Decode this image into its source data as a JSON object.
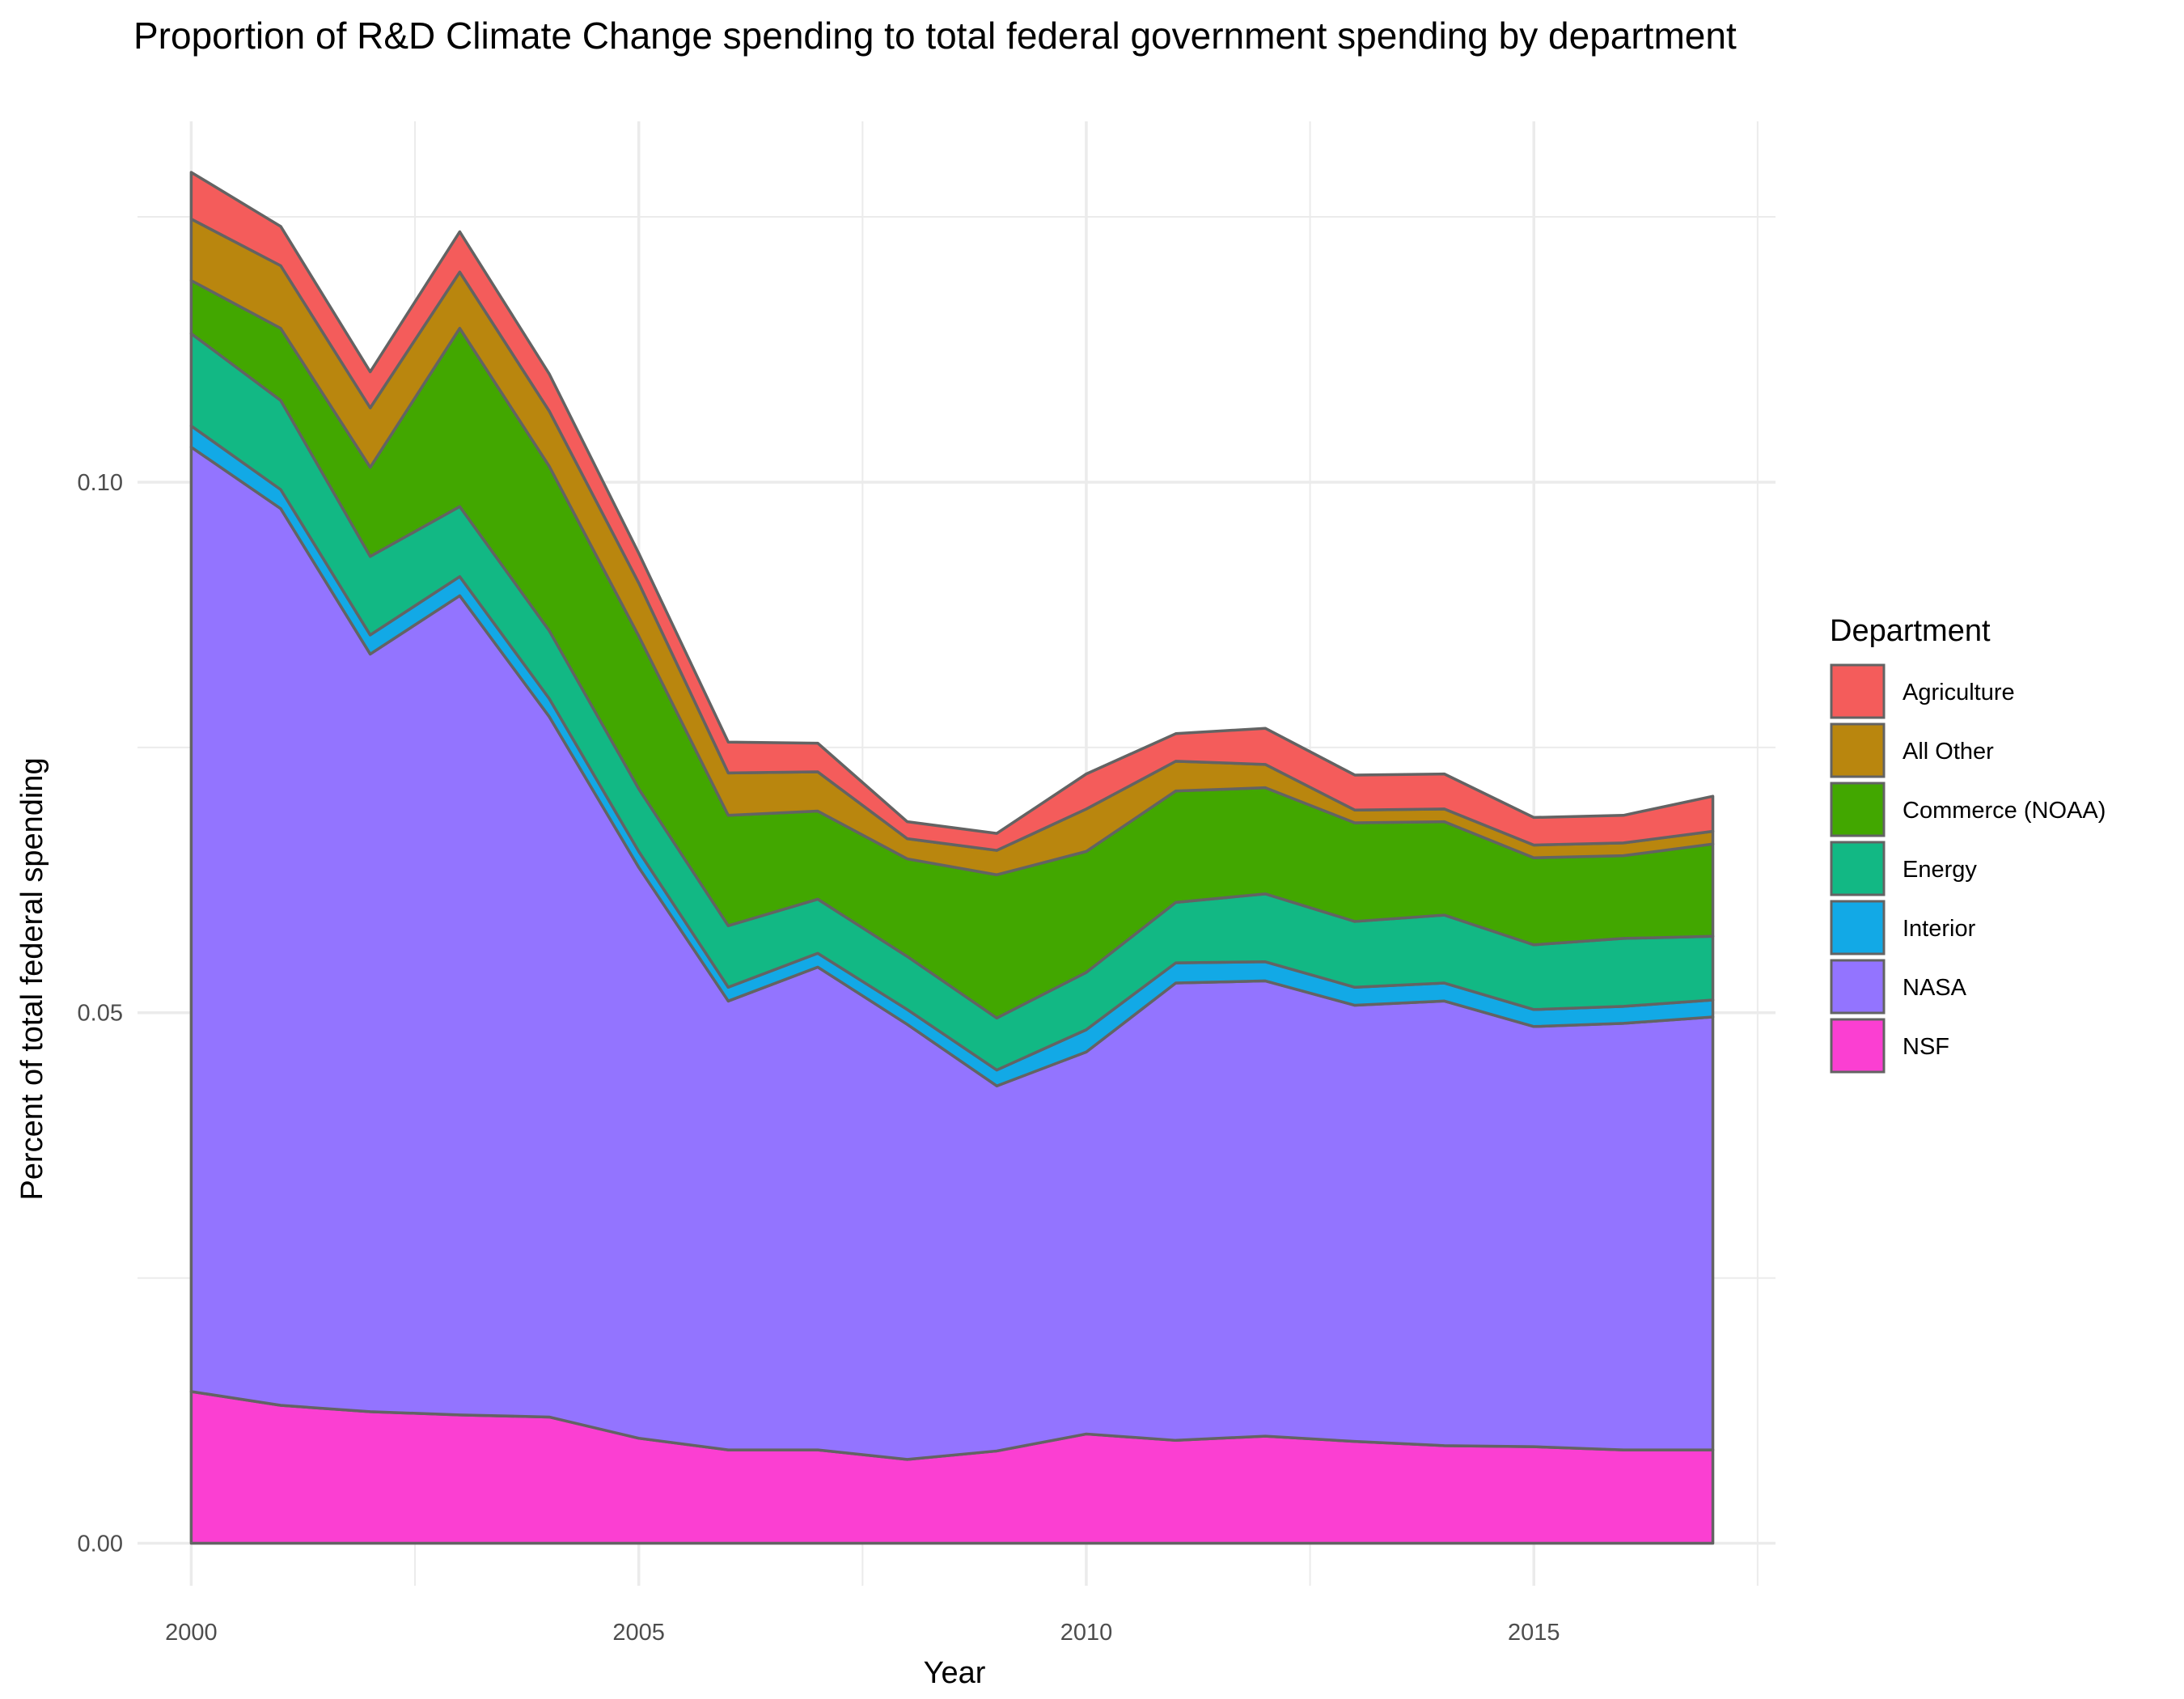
{
  "chart_data": {
    "type": "area",
    "stacked": true,
    "title": "Proportion of R&D Climate Change spending to total federal government spending by department",
    "xlabel": "Year",
    "ylabel": "Percent of total federal spending",
    "xlim": [
      1999.4,
      2017.7
    ],
    "ylim": [
      -0.004,
      0.134
    ],
    "x_ticks": [
      2000,
      2005,
      2010,
      2015
    ],
    "x_tick_labels": [
      "2000",
      "2005",
      "2010",
      "2015"
    ],
    "y_ticks": [
      0.0,
      0.05,
      0.1
    ],
    "y_tick_labels": [
      "0.00",
      "0.05",
      "0.10"
    ],
    "grid": true,
    "legend": {
      "title": "Department",
      "position": "right"
    },
    "x": [
      2000,
      2001,
      2002,
      2003,
      2004,
      2005,
      2006,
      2007,
      2008,
      2009,
      2010,
      2011,
      2012,
      2013,
      2014,
      2015,
      2016,
      2017
    ],
    "series": [
      {
        "name": "NSF",
        "color": "#FB3FD2",
        "values": [
          0.0143,
          0.013,
          0.0124,
          0.0121,
          0.0119,
          0.0099,
          0.0088,
          0.0088,
          0.0079,
          0.0087,
          0.0103,
          0.0097,
          0.0101,
          0.0096,
          0.0092,
          0.0091,
          0.0088,
          0.0088
        ]
      },
      {
        "name": "NASA",
        "color": "#9374FF",
        "values": [
          0.089,
          0.0845,
          0.0714,
          0.0772,
          0.066,
          0.0538,
          0.0423,
          0.0455,
          0.041,
          0.0344,
          0.036,
          0.0431,
          0.0429,
          0.0411,
          0.0419,
          0.0396,
          0.0402,
          0.0408
        ]
      },
      {
        "name": "Interior",
        "color": "#12A9E6",
        "values": [
          0.002,
          0.0018,
          0.0018,
          0.0018,
          0.0017,
          0.0015,
          0.0013,
          0.0013,
          0.0014,
          0.0015,
          0.0021,
          0.0019,
          0.0018,
          0.0017,
          0.0017,
          0.0016,
          0.0016,
          0.0016
        ]
      },
      {
        "name": "Energy",
        "color": "#12B884",
        "values": [
          0.0087,
          0.0084,
          0.0074,
          0.0066,
          0.0064,
          0.0059,
          0.0058,
          0.0051,
          0.005,
          0.0049,
          0.0054,
          0.0057,
          0.0064,
          0.0062,
          0.0064,
          0.0061,
          0.0064,
          0.006
        ]
      },
      {
        "name": "Commerce (NOAA)",
        "color": "#42A700",
        "values": [
          0.005,
          0.0068,
          0.0084,
          0.0168,
          0.0155,
          0.0144,
          0.0104,
          0.0083,
          0.0092,
          0.0135,
          0.0114,
          0.0105,
          0.01,
          0.0093,
          0.0088,
          0.0082,
          0.0078,
          0.0087
        ]
      },
      {
        "name": "All Other",
        "color": "#B9860E",
        "values": [
          0.0058,
          0.0059,
          0.0056,
          0.0053,
          0.0052,
          0.005,
          0.004,
          0.0037,
          0.0019,
          0.0023,
          0.004,
          0.0028,
          0.0022,
          0.0012,
          0.0012,
          0.0012,
          0.0012,
          0.0012
        ]
      },
      {
        "name": "Agriculture",
        "color": "#F45C5B",
        "values": [
          0.0044,
          0.0037,
          0.0034,
          0.0038,
          0.0035,
          0.0028,
          0.0029,
          0.0027,
          0.0016,
          0.0016,
          0.0033,
          0.0026,
          0.0034,
          0.0033,
          0.0033,
          0.0026,
          0.0026,
          0.0033
        ]
      }
    ]
  }
}
